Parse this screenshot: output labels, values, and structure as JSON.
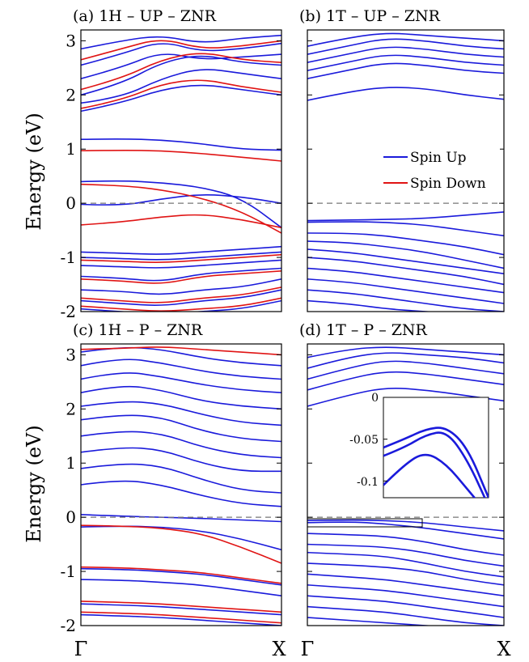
{
  "chart_data": {
    "type": "line",
    "figure": "Spin-resolved band structures of zigzag nanoribbons",
    "ylabel": "Energy (eV)",
    "ylim": [
      -2,
      3.2
    ],
    "yticks": [
      "3",
      "2",
      "1",
      "0",
      "-1",
      "-2"
    ],
    "xticks": [
      "Γ",
      "X"
    ],
    "fermi_level": 0,
    "legend": {
      "position": "right, middle of panel (b)",
      "entries": [
        {
          "name": "Spin Up",
          "color": "#1a1adb"
        },
        {
          "name": "Spin Down",
          "color": "#e01414"
        }
      ]
    },
    "panels": [
      {
        "title": "(a) 1H – UP – ZNR",
        "x": [
          0,
          0.2,
          0.4,
          0.6,
          0.8,
          1
        ],
        "series": [
          {
            "name": "Spin Up",
            "lines": [
              [
                -0.02,
                -0.05,
                0.08,
                0.17,
                0.12,
                0
              ],
              [
                0.4,
                0.42,
                0.38,
                0.3,
                0.1,
                -0.45
              ],
              [
                1.18,
                1.19,
                1.17,
                1.1,
                1.0,
                0.98
              ],
              [
                1.7,
                1.85,
                2.1,
                2.2,
                2.1,
                2.0
              ],
              [
                1.85,
                1.95,
                2.3,
                2.5,
                2.4,
                2.3
              ],
              [
                2.0,
                2.2,
                2.6,
                2.75,
                2.6,
                2.55
              ],
              [
                2.3,
                2.5,
                2.8,
                2.65,
                2.7,
                2.75
              ],
              [
                2.55,
                2.75,
                3.0,
                2.8,
                2.85,
                2.95
              ],
              [
                2.85,
                3.0,
                3.1,
                2.95,
                3.05,
                3.1
              ],
              [
                -0.9,
                -0.92,
                -0.95,
                -0.9,
                -0.85,
                -0.8
              ],
              [
                -1.0,
                -1.02,
                -1.05,
                -1.0,
                -0.95,
                -0.9
              ],
              [
                -1.15,
                -1.17,
                -1.2,
                -1.15,
                -1.1,
                -1.05
              ],
              [
                -1.35,
                -1.38,
                -1.45,
                -1.3,
                -1.25,
                -1.2
              ],
              [
                -1.6,
                -1.62,
                -1.7,
                -1.6,
                -1.55,
                -1.4
              ],
              [
                -1.8,
                -1.85,
                -1.9,
                -1.8,
                -1.75,
                -1.6
              ],
              [
                -1.95,
                -2.0,
                -2.05,
                -2.0,
                -1.95,
                -1.8
              ]
            ]
          },
          {
            "name": "Spin Down",
            "lines": [
              [
                0.35,
                0.33,
                0.25,
                0.1,
                -0.15,
                -0.55
              ],
              [
                -0.4,
                -0.35,
                -0.25,
                -0.2,
                -0.3,
                -0.45
              ],
              [
                0.97,
                0.98,
                0.97,
                0.92,
                0.85,
                0.78
              ],
              [
                1.75,
                1.9,
                2.2,
                2.3,
                2.15,
                2.05
              ],
              [
                2.1,
                2.3,
                2.65,
                2.8,
                2.65,
                2.6
              ],
              [
                2.65,
                2.85,
                3.05,
                2.85,
                2.9,
                3.0
              ],
              [
                -1.05,
                -1.07,
                -1.1,
                -1.05,
                -1.0,
                -0.95
              ],
              [
                -1.4,
                -1.43,
                -1.5,
                -1.35,
                -1.3,
                -1.25
              ],
              [
                -1.75,
                -1.8,
                -1.85,
                -1.75,
                -1.7,
                -1.55
              ],
              [
                -1.9,
                -1.95,
                -2.0,
                -1.95,
                -1.9,
                -1.75
              ]
            ]
          }
        ]
      },
      {
        "title": "(b) 1T – UP – ZNR",
        "x": [
          0,
          0.2,
          0.4,
          0.6,
          0.8,
          1
        ],
        "series": [
          {
            "name": "Spin Up",
            "lines": [
              [
                1.9,
                2.05,
                2.15,
                2.12,
                2.0,
                1.92
              ],
              [
                2.3,
                2.45,
                2.6,
                2.55,
                2.45,
                2.4
              ],
              [
                2.45,
                2.6,
                2.75,
                2.7,
                2.6,
                2.55
              ],
              [
                2.6,
                2.75,
                2.9,
                2.85,
                2.75,
                2.7
              ],
              [
                2.75,
                2.9,
                3.05,
                3.0,
                2.9,
                2.85
              ],
              [
                2.9,
                3.05,
                3.15,
                3.1,
                3.05,
                3.0
              ],
              [
                -0.32,
                -0.31,
                -0.3,
                -0.28,
                -0.22,
                -0.16
              ],
              [
                -0.35,
                -0.34,
                -0.35,
                -0.4,
                -0.5,
                -0.6
              ],
              [
                -0.55,
                -0.55,
                -0.6,
                -0.7,
                -0.8,
                -0.95
              ],
              [
                -0.7,
                -0.72,
                -0.8,
                -0.9,
                -1.05,
                -1.2
              ],
              [
                -0.85,
                -0.9,
                -1.0,
                -1.1,
                -1.2,
                -1.3
              ],
              [
                -1.0,
                -1.05,
                -1.15,
                -1.25,
                -1.35,
                -1.5
              ],
              [
                -1.2,
                -1.25,
                -1.35,
                -1.45,
                -1.55,
                -1.65
              ],
              [
                -1.4,
                -1.45,
                -1.55,
                -1.65,
                -1.75,
                -1.85
              ],
              [
                -1.6,
                -1.65,
                -1.75,
                -1.85,
                -1.95,
                -2.0
              ],
              [
                -1.8,
                -1.85,
                -1.95,
                -2.0,
                -2.05,
                -2.1
              ]
            ]
          },
          {
            "name": "Spin Down",
            "lines": []
          }
        ]
      },
      {
        "title": "(c) 1H – P – ZNR",
        "x": [
          0,
          0.2,
          0.4,
          0.6,
          0.8,
          1
        ],
        "series": [
          {
            "name": "Spin Up",
            "lines": [
              [
                -0.18,
                -0.16,
                -0.18,
                -0.25,
                -0.4,
                -0.6
              ],
              [
                0.05,
                0.02,
                0.0,
                -0.02,
                -0.05,
                -0.08
              ],
              [
                0.6,
                0.7,
                0.6,
                0.4,
                0.25,
                0.2
              ],
              [
                0.9,
                1.0,
                0.95,
                0.7,
                0.5,
                0.45
              ],
              [
                1.2,
                1.3,
                1.25,
                1.0,
                0.85,
                0.85
              ],
              [
                1.5,
                1.6,
                1.55,
                1.3,
                1.15,
                1.1
              ],
              [
                1.8,
                1.9,
                1.85,
                1.6,
                1.45,
                1.4
              ],
              [
                2.05,
                2.15,
                2.1,
                1.9,
                1.75,
                1.7
              ],
              [
                2.3,
                2.45,
                2.35,
                2.15,
                2.05,
                2.0
              ],
              [
                2.55,
                2.7,
                2.6,
                2.45,
                2.35,
                2.3
              ],
              [
                2.8,
                2.95,
                2.85,
                2.7,
                2.6,
                2.55
              ],
              [
                3.05,
                3.15,
                3.1,
                2.95,
                2.85,
                2.8
              ],
              [
                -0.95,
                -0.96,
                -1.0,
                -1.05,
                -1.15,
                -1.25
              ],
              [
                -1.15,
                -1.16,
                -1.2,
                -1.25,
                -1.35,
                -1.45
              ],
              [
                -1.6,
                -1.62,
                -1.65,
                -1.7,
                -1.75,
                -1.8
              ],
              [
                -1.8,
                -1.82,
                -1.85,
                -1.9,
                -1.95,
                -2.0
              ]
            ]
          },
          {
            "name": "Spin Down",
            "lines": [
              [
                -0.15,
                -0.16,
                -0.2,
                -0.3,
                -0.55,
                -0.85
              ],
              [
                -0.92,
                -0.93,
                -0.97,
                -1.02,
                -1.12,
                -1.22
              ],
              [
                -1.55,
                -1.57,
                -1.6,
                -1.65,
                -1.7,
                -1.75
              ],
              [
                -1.75,
                -1.77,
                -1.8,
                -1.85,
                -1.9,
                -1.95
              ],
              [
                3.1,
                3.12,
                3.15,
                3.1,
                3.05,
                3.0
              ]
            ]
          }
        ]
      },
      {
        "title": "(d) 1T – P – ZNR",
        "x": [
          0,
          0.2,
          0.4,
          0.6,
          0.8,
          1
        ],
        "series": [
          {
            "name": "Spin Up",
            "lines": [
              [
                2.05,
                2.25,
                2.4,
                2.35,
                2.25,
                2.15
              ],
              [
                2.35,
                2.55,
                2.7,
                2.65,
                2.55,
                2.45
              ],
              [
                2.55,
                2.75,
                2.9,
                2.85,
                2.75,
                2.65
              ],
              [
                2.75,
                2.95,
                3.05,
                3.0,
                2.95,
                2.85
              ],
              [
                2.95,
                3.1,
                3.15,
                3.1,
                3.05,
                3.0
              ],
              [
                -0.06,
                -0.05,
                -0.06,
                -0.1,
                -0.18,
                -0.25
              ],
              [
                -0.1,
                -0.08,
                -0.12,
                -0.2,
                -0.3,
                -0.4
              ],
              [
                -0.3,
                -0.32,
                -0.35,
                -0.45,
                -0.6,
                -0.7
              ],
              [
                -0.5,
                -0.52,
                -0.55,
                -0.65,
                -0.8,
                -0.9
              ],
              [
                -0.65,
                -0.68,
                -0.72,
                -0.85,
                -1.0,
                -1.1
              ],
              [
                -0.85,
                -0.88,
                -0.92,
                -1.0,
                -1.15,
                -1.25
              ],
              [
                -1.05,
                -1.1,
                -1.15,
                -1.25,
                -1.35,
                -1.45
              ],
              [
                -1.25,
                -1.3,
                -1.35,
                -1.45,
                -1.55,
                -1.65
              ],
              [
                -1.45,
                -1.5,
                -1.55,
                -1.65,
                -1.75,
                -1.85
              ],
              [
                -1.65,
                -1.7,
                -1.75,
                -1.85,
                -1.95,
                -2.0
              ],
              [
                -1.85,
                -1.9,
                -1.95,
                -2.0,
                -2.05,
                -2.1
              ]
            ]
          },
          {
            "name": "Spin Down",
            "lines": []
          }
        ],
        "inset": {
          "yticks": [
            "0",
            "-0.05",
            "-0.1"
          ],
          "ylim": [
            -0.12,
            0
          ],
          "x": [
            0,
            0.2,
            0.4,
            0.6,
            0.8,
            1
          ],
          "lines": [
            [
              -0.06,
              -0.05,
              -0.038,
              -0.035,
              -0.06,
              -0.12
            ],
            [
              -0.07,
              -0.06,
              -0.045,
              -0.04,
              -0.075,
              -0.13
            ],
            [
              -0.105,
              -0.08,
              -0.065,
              -0.08,
              -0.11,
              -0.14
            ]
          ]
        }
      }
    ]
  }
}
